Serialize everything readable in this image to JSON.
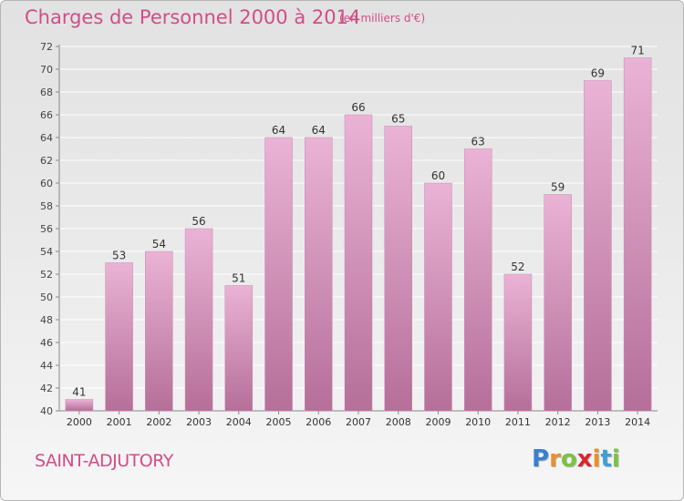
{
  "header": {
    "title": "Charges de Personnel 2000 à 2014",
    "unit": "(en milliers d'€)"
  },
  "footer": {
    "place": "SAINT-ADJUTORY",
    "logo_letters": [
      "P",
      "r",
      "o",
      "x",
      "i",
      "t",
      "i"
    ],
    "logo_colors": [
      "#3a7fd0",
      "#e8912a",
      "#7cc243",
      "#d9262b",
      "#e8912a",
      "#3aa0d8",
      "#7cc243"
    ]
  },
  "colors": {
    "bar_top": "#eab3d5",
    "bar_bottom": "#b56f99",
    "accent": "#d14d88"
  },
  "chart_data": {
    "type": "bar",
    "title": "Charges de Personnel 2000 à 2014",
    "xlabel": "",
    "ylabel": "",
    "categories": [
      "2000",
      "2001",
      "2002",
      "2003",
      "2004",
      "2005",
      "2006",
      "2007",
      "2008",
      "2009",
      "2010",
      "2011",
      "2012",
      "2013",
      "2014"
    ],
    "values": [
      41,
      53,
      54,
      56,
      51,
      64,
      64,
      66,
      65,
      60,
      63,
      52,
      59,
      69,
      71
    ],
    "ylim": [
      40,
      72
    ],
    "yticks": [
      40,
      42,
      44,
      46,
      48,
      50,
      52,
      54,
      56,
      58,
      60,
      62,
      64,
      66,
      68,
      70,
      72
    ],
    "grid": true,
    "legend": "none"
  }
}
